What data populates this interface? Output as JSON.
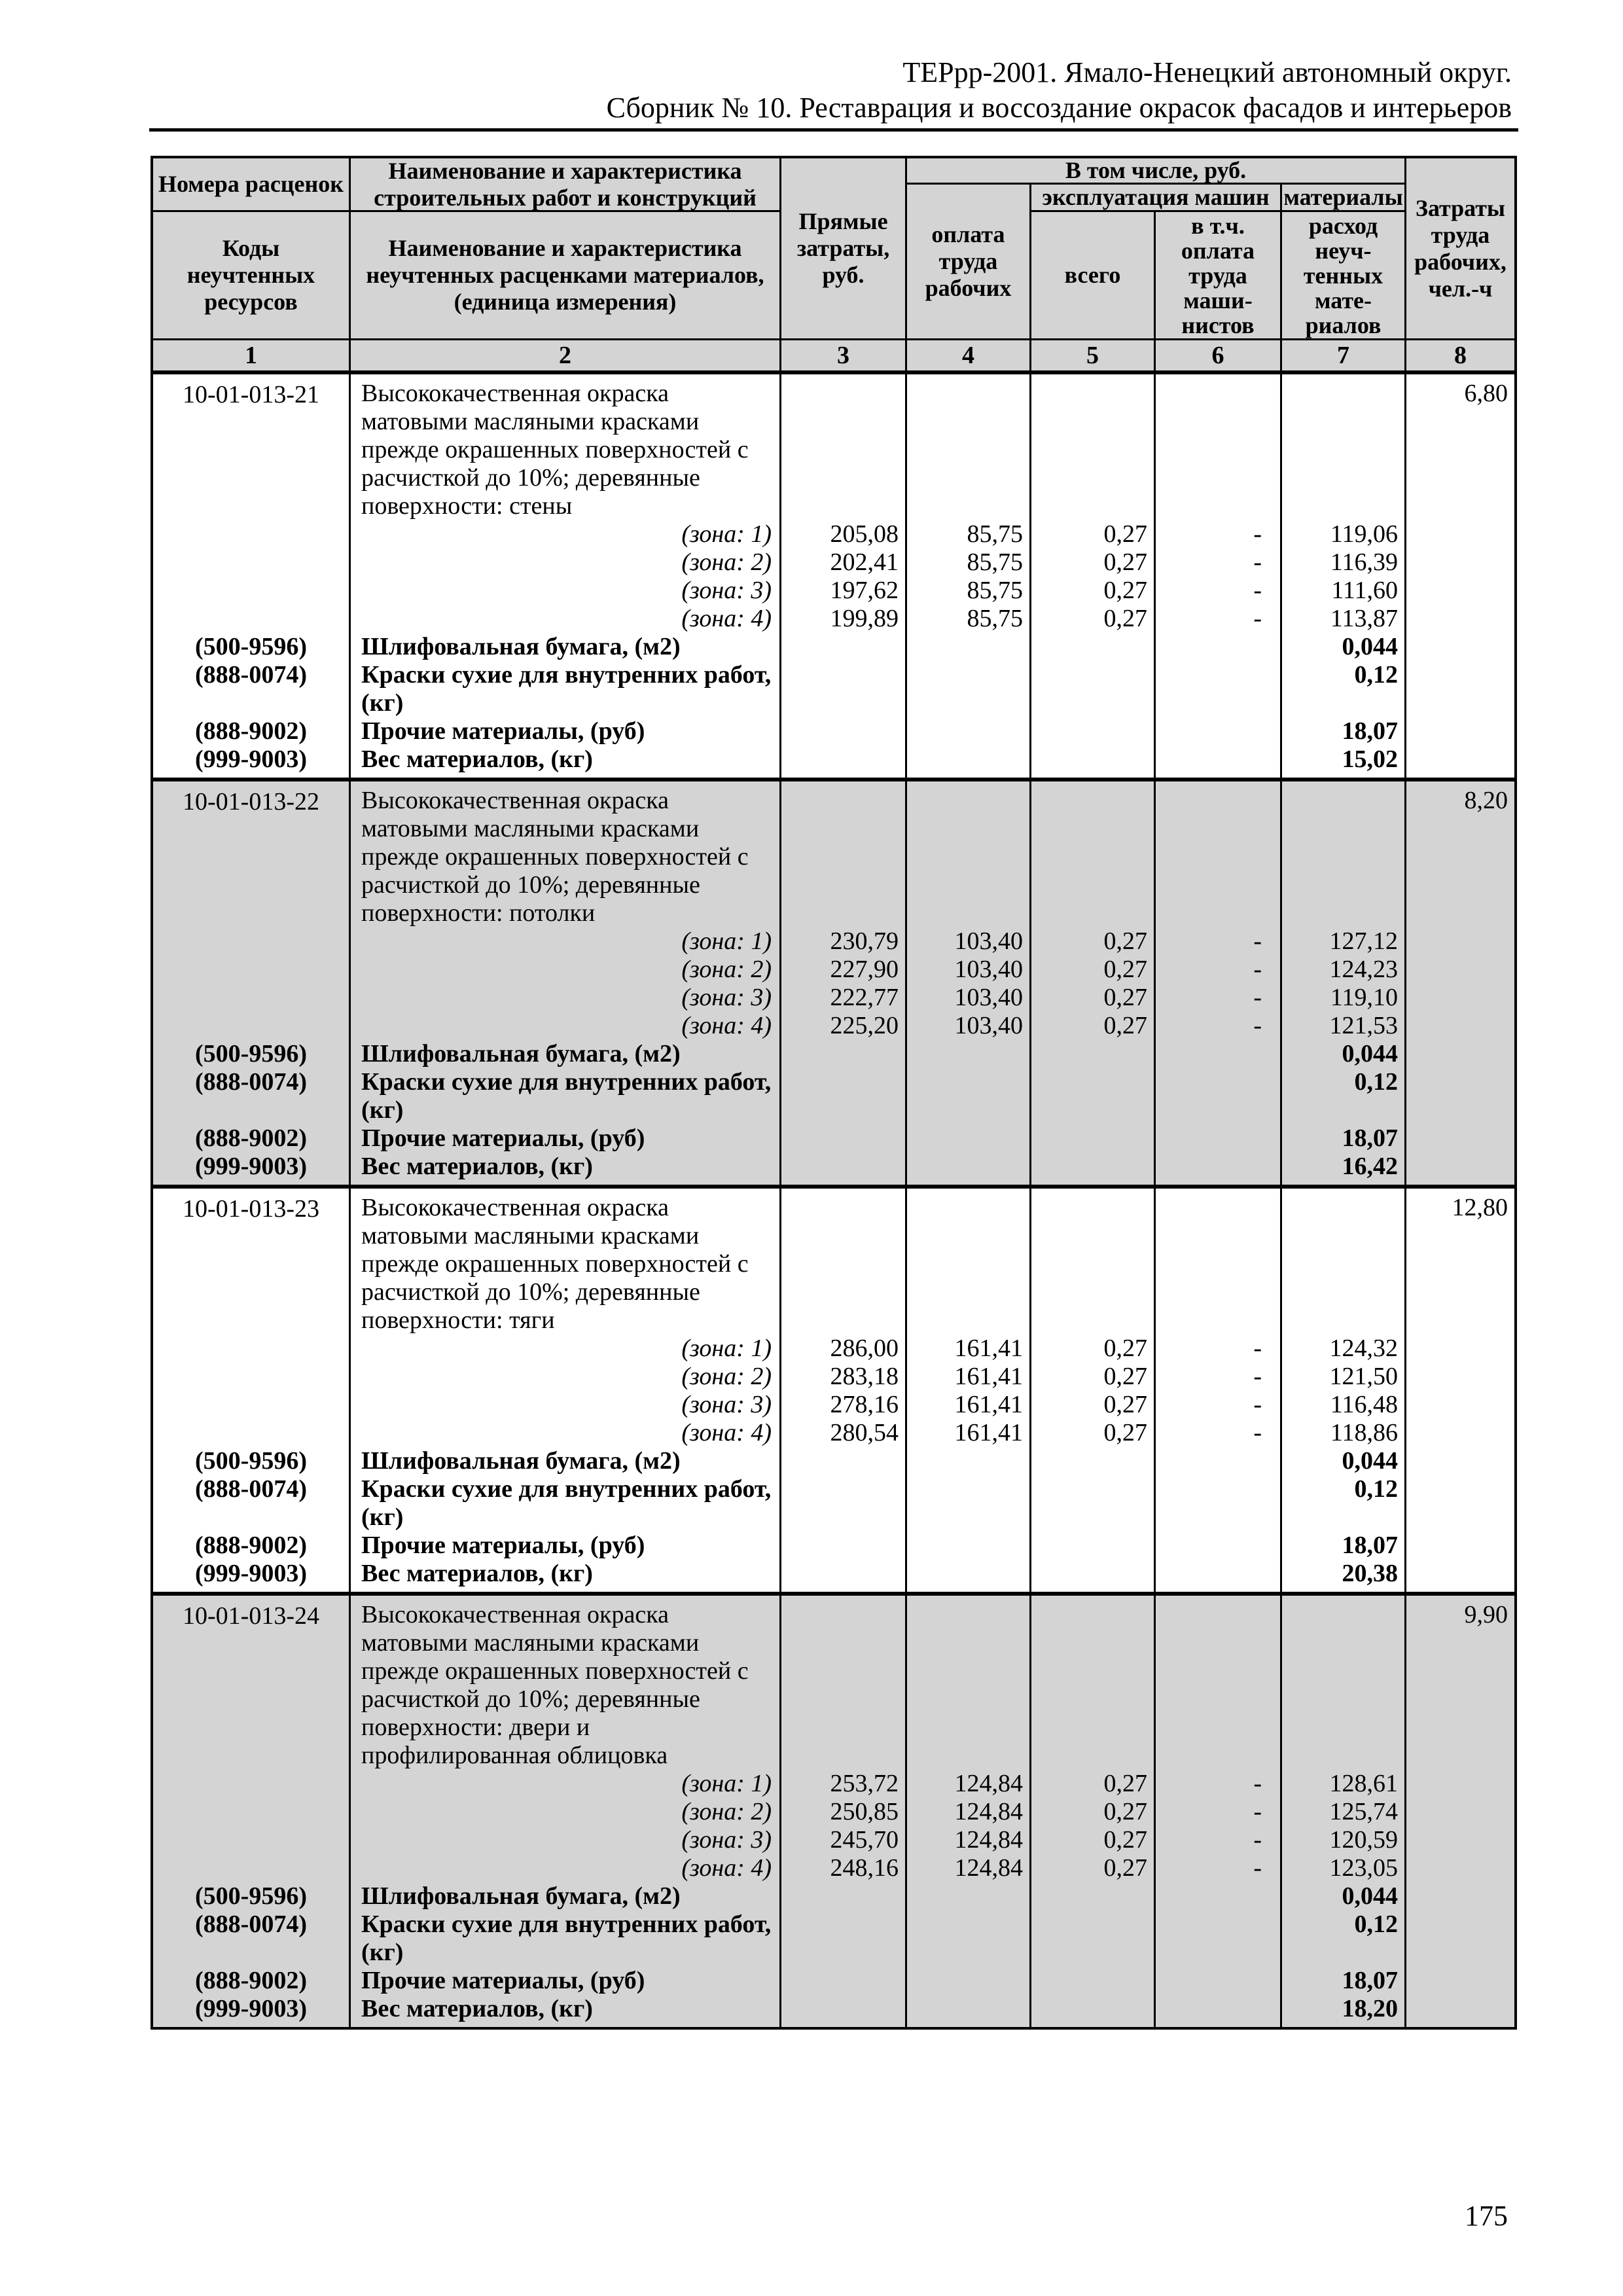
{
  "doc_header": {
    "line1": "ТЕРрр-2001. Ямало-Ненецкий автономный округ.",
    "line2": "Сборник № 10. Реставрация и воссоздание окрасок фасадов и интерьеров"
  },
  "page_number": "175",
  "colors": {
    "table_shading": "#d4d4d4",
    "border": "#000000"
  },
  "table": {
    "header": {
      "col1_top": "Номера расценок",
      "col1_bottom": "Коды\nнеучтенных\nресурсов",
      "col2_top": "Наименование и характеристика\nстроительных работ и конструкций",
      "col2_bottom": "Наименование и характеристика\nнеучтенных расценками материалов,\n(единица измерения)",
      "col3": "Прямые\nзатраты,\nруб.",
      "group_in_total": "В том числе, руб.",
      "col4": "оплата\nтруда\nрабочих",
      "group_machines": "эксплуатация машин",
      "col5": "всего",
      "col6": "в т.ч.\nоплата\nтруда\nмаши-\nнистов",
      "group_materials": "материалы",
      "col7": "расход\nнеуч-\nтенных\nмате-\nриалов",
      "col8": "Затраты\nтруда\nрабочих,\nчел.-ч",
      "numbers": [
        "1",
        "2",
        "3",
        "4",
        "5",
        "6",
        "7",
        "8"
      ]
    },
    "sections": [
      {
        "code": "10-01-013-21",
        "description": "Высококачественная окраска\nматовыми масляными красками\nпрежде окрашенных поверхностей с\nрасчисткой до 10%; деревянные\nповерхности: стены",
        "labor": "6,80",
        "shaded": false,
        "zones": [
          {
            "label": "(зона: 1)",
            "direct": "205,08",
            "wages": "85,75",
            "machines_total": "0,27",
            "machinists": "-",
            "materials": "119,06"
          },
          {
            "label": "(зона: 2)",
            "direct": "202,41",
            "wages": "85,75",
            "machines_total": "0,27",
            "machinists": "-",
            "materials": "116,39"
          },
          {
            "label": "(зона: 3)",
            "direct": "197,62",
            "wages": "85,75",
            "machines_total": "0,27",
            "machinists": "-",
            "materials": "111,60"
          },
          {
            "label": "(зона: 4)",
            "direct": "199,89",
            "wages": "85,75",
            "machines_total": "0,27",
            "machinists": "-",
            "materials": "113,87"
          }
        ],
        "materials": [
          {
            "code": "(500-9596)",
            "label": "Шлифовальная бумага, (м2)",
            "value": "0,044"
          },
          {
            "code": "(888-0074)",
            "label": "Краски сухие для внутренних работ,\n(кг)",
            "value": "0,12"
          },
          {
            "code": "(888-9002)",
            "label": "Прочие материалы, (руб)",
            "value": "18,07"
          },
          {
            "code": "(999-9003)",
            "label": "Вес материалов, (кг)",
            "value": "15,02"
          }
        ]
      },
      {
        "code": "10-01-013-22",
        "description": "Высококачественная окраска\nматовыми масляными красками\nпрежде окрашенных поверхностей с\nрасчисткой до 10%; деревянные\nповерхности: потолки",
        "labor": "8,20",
        "shaded": true,
        "zones": [
          {
            "label": "(зона: 1)",
            "direct": "230,79",
            "wages": "103,40",
            "machines_total": "0,27",
            "machinists": "-",
            "materials": "127,12"
          },
          {
            "label": "(зона: 2)",
            "direct": "227,90",
            "wages": "103,40",
            "machines_total": "0,27",
            "machinists": "-",
            "materials": "124,23"
          },
          {
            "label": "(зона: 3)",
            "direct": "222,77",
            "wages": "103,40",
            "machines_total": "0,27",
            "machinists": "-",
            "materials": "119,10"
          },
          {
            "label": "(зона: 4)",
            "direct": "225,20",
            "wages": "103,40",
            "machines_total": "0,27",
            "machinists": "-",
            "materials": "121,53"
          }
        ],
        "materials": [
          {
            "code": "(500-9596)",
            "label": "Шлифовальная бумага, (м2)",
            "value": "0,044"
          },
          {
            "code": "(888-0074)",
            "label": "Краски сухие для внутренних работ,\n(кг)",
            "value": "0,12"
          },
          {
            "code": "(888-9002)",
            "label": "Прочие материалы, (руб)",
            "value": "18,07"
          },
          {
            "code": "(999-9003)",
            "label": "Вес материалов, (кг)",
            "value": "16,42"
          }
        ]
      },
      {
        "code": "10-01-013-23",
        "description": "Высококачественная окраска\nматовыми масляными красками\nпрежде окрашенных поверхностей с\nрасчисткой до 10%; деревянные\nповерхности: тяги",
        "labor": "12,80",
        "shaded": false,
        "zones": [
          {
            "label": "(зона: 1)",
            "direct": "286,00",
            "wages": "161,41",
            "machines_total": "0,27",
            "machinists": "-",
            "materials": "124,32"
          },
          {
            "label": "(зона: 2)",
            "direct": "283,18",
            "wages": "161,41",
            "machines_total": "0,27",
            "machinists": "-",
            "materials": "121,50"
          },
          {
            "label": "(зона: 3)",
            "direct": "278,16",
            "wages": "161,41",
            "machines_total": "0,27",
            "machinists": "-",
            "materials": "116,48"
          },
          {
            "label": "(зона: 4)",
            "direct": "280,54",
            "wages": "161,41",
            "machines_total": "0,27",
            "machinists": "-",
            "materials": "118,86"
          }
        ],
        "materials": [
          {
            "code": "(500-9596)",
            "label": "Шлифовальная бумага, (м2)",
            "value": "0,044"
          },
          {
            "code": "(888-0074)",
            "label": "Краски сухие для внутренних работ,\n(кг)",
            "value": "0,12"
          },
          {
            "code": "(888-9002)",
            "label": "Прочие материалы, (руб)",
            "value": "18,07"
          },
          {
            "code": "(999-9003)",
            "label": "Вес материалов, (кг)",
            "value": "20,38"
          }
        ]
      },
      {
        "code": "10-01-013-24",
        "description": "Высококачественная окраска\nматовыми масляными красками\nпрежде окрашенных поверхностей с\nрасчисткой до 10%; деревянные\nповерхности: двери и\nпрофилированная облицовка",
        "labor": "9,90",
        "shaded": true,
        "zones": [
          {
            "label": "(зона: 1)",
            "direct": "253,72",
            "wages": "124,84",
            "machines_total": "0,27",
            "machinists": "-",
            "materials": "128,61"
          },
          {
            "label": "(зона: 2)",
            "direct": "250,85",
            "wages": "124,84",
            "machines_total": "0,27",
            "machinists": "-",
            "materials": "125,74"
          },
          {
            "label": "(зона: 3)",
            "direct": "245,70",
            "wages": "124,84",
            "machines_total": "0,27",
            "machinists": "-",
            "materials": "120,59"
          },
          {
            "label": "(зона: 4)",
            "direct": "248,16",
            "wages": "124,84",
            "machines_total": "0,27",
            "machinists": "-",
            "materials": "123,05"
          }
        ],
        "materials": [
          {
            "code": "(500-9596)",
            "label": "Шлифовальная бумага, (м2)",
            "value": "0,044"
          },
          {
            "code": "(888-0074)",
            "label": "Краски сухие для внутренних работ,\n(кг)",
            "value": "0,12"
          },
          {
            "code": "(888-9002)",
            "label": "Прочие материалы, (руб)",
            "value": "18,07"
          },
          {
            "code": "(999-9003)",
            "label": "Вес материалов, (кг)",
            "value": "18,20"
          }
        ]
      }
    ]
  }
}
